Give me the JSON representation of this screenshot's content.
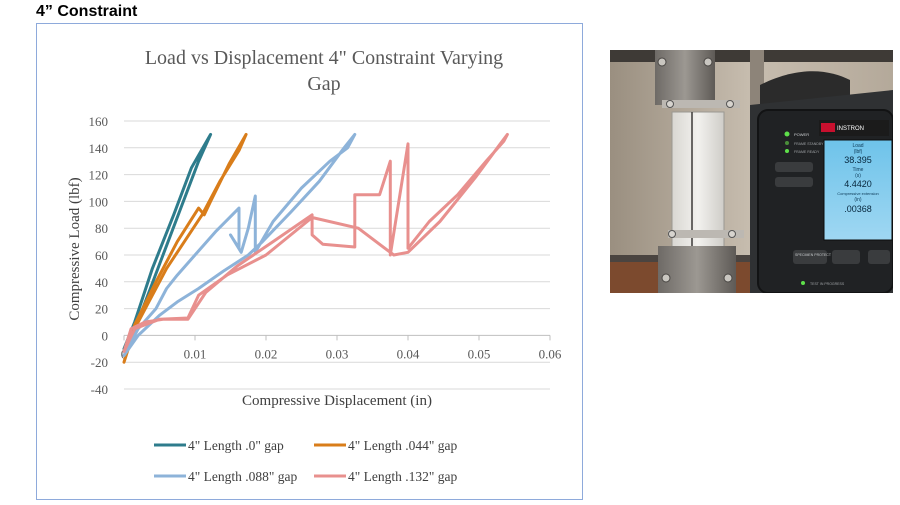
{
  "heading": "4” Constraint",
  "chart_data": {
    "type": "line",
    "title": "Load vs Displacement 4\" Constraint Varying Gap",
    "title_lines": [
      "Load vs Displacement 4\" Constraint Varying",
      "Gap"
    ],
    "xlabel": "Compressive Displacement (in)",
    "ylabel": "Compressive Load (lbf)",
    "xlim": [
      0,
      0.06
    ],
    "ylim": [
      -40,
      160
    ],
    "x_ticks": [
      "0",
      "0.01",
      "0.02",
      "0.03",
      "0.04",
      "0.05",
      "0.06"
    ],
    "y_ticks": [
      "160",
      "140",
      "120",
      "100",
      "80",
      "60",
      "40",
      "20",
      "0",
      "-20",
      "-40"
    ],
    "grid": true,
    "legend_position": "bottom",
    "series": [
      {
        "name": "4\" Length .0\" gap",
        "color": "#2e7c8c",
        "x": [
          0.0,
          0.0015,
          0.004,
          0.007,
          0.0095,
          0.0122,
          0.0105,
          0.008,
          0.0055,
          0.003,
          0.0012,
          0.0
        ],
        "y": [
          -10,
          10,
          50,
          90,
          125,
          150,
          130,
          95,
          60,
          25,
          0,
          -10
        ]
      },
      {
        "name": "4\" Length .044\" gap",
        "color": "#d97d1a",
        "x": [
          0.0,
          0.0015,
          0.0045,
          0.0075,
          0.0105,
          0.0113,
          0.0122,
          0.0148,
          0.0172,
          0.0162,
          0.0135,
          0.011,
          0.0085,
          0.006,
          0.0035,
          0.0015,
          0.0
        ],
        "y": [
          -20,
          8,
          40,
          70,
          95,
          90,
          100,
          128,
          150,
          138,
          115,
          90,
          70,
          50,
          25,
          5,
          -20
        ]
      },
      {
        "name": "4\" Length .088\" gap",
        "color": "#8db3d9",
        "x": [
          0.0,
          0.002,
          0.0045,
          0.006,
          0.0075,
          0.01,
          0.013,
          0.0162,
          0.0162,
          0.015,
          0.0165,
          0.0175,
          0.0185,
          0.0185,
          0.021,
          0.025,
          0.029,
          0.0315,
          0.0325,
          0.031,
          0.0275,
          0.0235,
          0.0195,
          0.0175,
          0.014,
          0.0105,
          0.0075,
          0.005,
          0.002,
          0.0
        ],
        "y": [
          -15,
          5,
          20,
          35,
          45,
          60,
          78,
          95,
          65,
          75,
          62,
          80,
          104,
          62,
          85,
          110,
          130,
          140,
          150,
          140,
          115,
          92,
          70,
          60,
          48,
          35,
          25,
          15,
          0,
          -15
        ]
      },
      {
        "name": "4\" Length .132\" gap",
        "color": "#e8908e",
        "x": [
          0.0,
          0.001,
          0.003,
          0.0055,
          0.009,
          0.0115,
          0.016,
          0.021,
          0.0265,
          0.0265,
          0.028,
          0.0325,
          0.0325,
          0.036,
          0.0375,
          0.0375,
          0.04,
          0.04,
          0.043,
          0.047,
          0.051,
          0.0535,
          0.054,
          0.053,
          0.0495,
          0.0445,
          0.04,
          0.038,
          0.033,
          0.0265,
          0.02,
          0.0145,
          0.0105,
          0.009,
          0.005,
          0.0015,
          0.0
        ],
        "y": [
          -12,
          5,
          10,
          12,
          12,
          32,
          52,
          70,
          90,
          75,
          68,
          66,
          105,
          105,
          130,
          60,
          143,
          65,
          85,
          105,
          130,
          145,
          150,
          143,
          118,
          85,
          62,
          60,
          80,
          88,
          60,
          45,
          30,
          13,
          12,
          5,
          -12
        ]
      }
    ]
  },
  "photo": {
    "display": {
      "brand": "INSTRON",
      "load_label": "Load",
      "load_unit": "(lbf)",
      "load_value": "38.395",
      "time_label": "Time",
      "time_unit": "(s)",
      "time_value": "4.4420",
      "ext_label": "Compressive extension",
      "ext_unit": "(in)",
      "ext_value": ".00368"
    },
    "panel": {
      "power_label": "POWER",
      "frame_standby": "FRAME STANDBY",
      "frame_ready": "FRAME READY",
      "specimen_protect": "SPECIMEN PROTECT",
      "test_in_progress": "TEST IN PROGRESS"
    }
  }
}
